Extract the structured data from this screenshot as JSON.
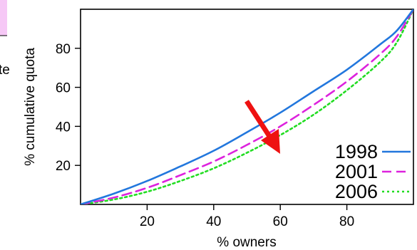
{
  "chart_data": {
    "type": "line",
    "title": "",
    "xlabel": "% owners",
    "ylabel": "% cumulative quota",
    "xlim": [
      0,
      100
    ],
    "ylim": [
      0,
      100
    ],
    "x_ticks": [
      20,
      40,
      60,
      80
    ],
    "y_ticks": [
      20,
      40,
      60,
      80
    ],
    "grid": false,
    "legend_position": "bottom-right",
    "annotation": "red arrow pointing down-right from the 1998 curve toward the 2006 curve",
    "partial_left_label": "te",
    "colors": {
      "1998": "#2277dd",
      "2001": "#dd22dd",
      "2006": "#22dd22",
      "arrow": "#ee1111",
      "left_box": "#f6c8f6"
    },
    "series": [
      {
        "name": "1998",
        "style": "solid",
        "x": [
          0,
          10,
          20,
          30,
          40,
          50,
          60,
          70,
          80,
          90,
          95,
          100
        ],
        "y": [
          0,
          5.5,
          12,
          19.5,
          27.5,
          37,
          47,
          58,
          69,
          82,
          89,
          100
        ]
      },
      {
        "name": "2001",
        "style": "dashed",
        "x": [
          0,
          10,
          20,
          30,
          40,
          50,
          60,
          70,
          80,
          90,
          95,
          100
        ],
        "y": [
          0,
          3.5,
          8.5,
          15,
          22,
          30.5,
          40,
          51,
          63,
          77,
          86,
          100
        ]
      },
      {
        "name": "2006",
        "style": "dotted",
        "x": [
          0,
          10,
          20,
          30,
          40,
          50,
          60,
          70,
          80,
          90,
          95,
          100
        ],
        "y": [
          0,
          2.5,
          6.5,
          12,
          18.5,
          26.5,
          35.5,
          46,
          58.5,
          73,
          83,
          100
        ]
      }
    ]
  }
}
